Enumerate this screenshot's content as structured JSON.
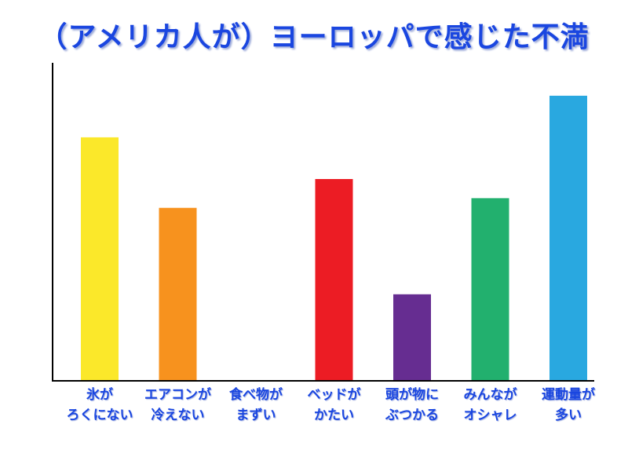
{
  "chart_data": {
    "type": "bar",
    "title": "（アメリカ人が）ヨーロッパで感じた不満",
    "xlabel": "",
    "ylabel": "",
    "ylim": [
      0,
      100
    ],
    "grid": false,
    "categories": [
      [
        "氷が",
        "ろくにない"
      ],
      [
        "エアコンが",
        "冷えない"
      ],
      [
        "食べ物が",
        "まずい"
      ],
      [
        "ベッドが",
        "かたい"
      ],
      [
        "頭が物に",
        "ぶつかる"
      ],
      [
        "みんなが",
        "オシャレ"
      ],
      [
        "運動量が",
        "多い"
      ]
    ],
    "values": [
      76,
      54,
      0,
      63,
      27,
      57,
      89
    ],
    "colors": [
      "#fbe82a",
      "#f7921e",
      "#ffffff",
      "#ec1c24",
      "#662d91",
      "#22b06e",
      "#29a8e0"
    ]
  }
}
